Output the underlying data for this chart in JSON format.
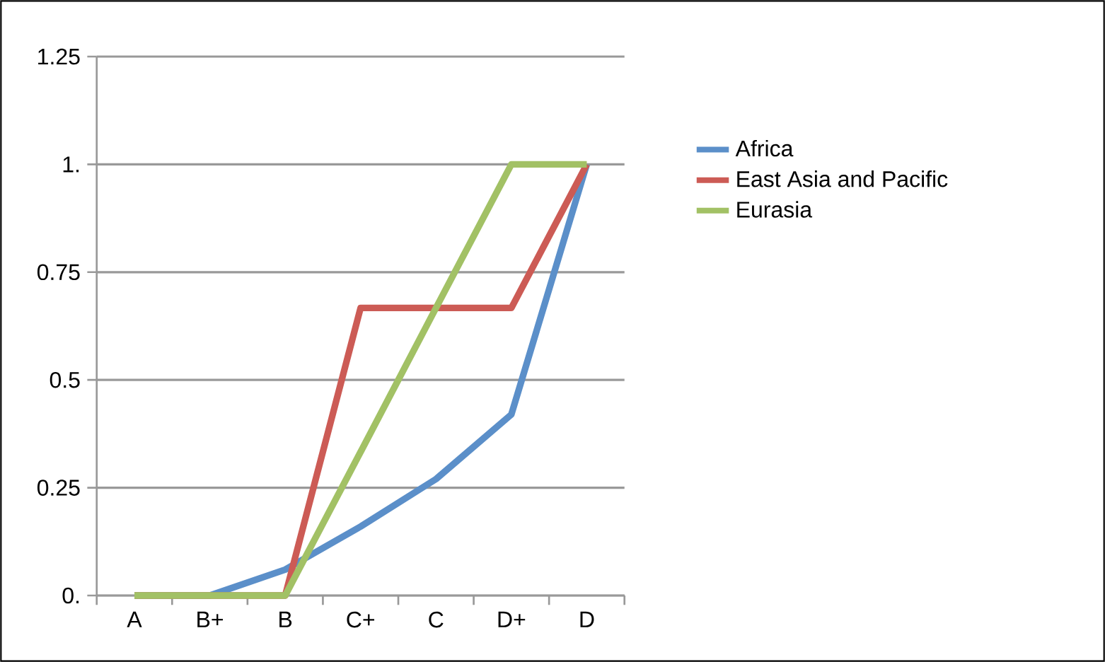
{
  "chart_data": {
    "type": "line",
    "categories": [
      "A",
      "B+",
      "B",
      "C+",
      "C",
      "D+",
      "D"
    ],
    "series": [
      {
        "name": "Africa",
        "color": "#5b8fc9",
        "values": [
          0,
          0,
          0.06,
          0.16,
          0.27,
          0.42,
          1
        ]
      },
      {
        "name": "East Asia and Pacific",
        "color": "#cc5b55",
        "values": [
          0,
          0,
          0,
          0.667,
          0.667,
          0.667,
          1
        ]
      },
      {
        "name": "Eurasia",
        "color": "#a2c165",
        "values": [
          0,
          0,
          0,
          0.333,
          0.667,
          1,
          1
        ]
      }
    ],
    "ylim": [
      0,
      1.25
    ],
    "yticks": [
      {
        "value": 0,
        "label": "0."
      },
      0.25,
      0.5,
      0.75,
      {
        "value": 1,
        "label": "1."
      },
      1.25
    ],
    "grid": "y",
    "legend": "right",
    "marker": "none",
    "line_style": "solid"
  }
}
